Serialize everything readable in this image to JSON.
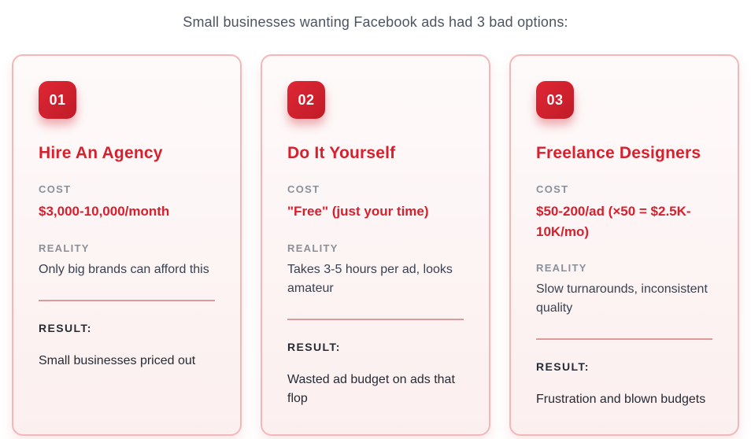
{
  "heading": "Small businesses wanting Facebook ads had 3 bad options:",
  "labels": {
    "cost": "COST",
    "reality": "REALITY",
    "result": "RESULT:"
  },
  "colors": {
    "accent_red": "#d7202e",
    "badge_red": "#c01b27",
    "card_background": "#fcefef",
    "card_border": "#f5b6b8",
    "divider_pink": "#de9a9a",
    "label_gray": "#8a909a",
    "body_text_dark": "#3a4150",
    "heading_gray": "#4d5462"
  },
  "cards": [
    {
      "number": "01",
      "title": "Hire An Agency",
      "cost": "$3,000-10,000/month",
      "reality": "Only big brands can afford this",
      "result": "Small businesses priced out"
    },
    {
      "number": "02",
      "title": "Do It Yourself",
      "cost": "\"Free\" (just your time)",
      "reality": "Takes 3-5 hours per ad, looks amateur",
      "result": "Wasted ad budget on ads that flop"
    },
    {
      "number": "03",
      "title": "Freelance Designers",
      "cost": "$50-200/ad (×50 = $2.5K-10K/mo)",
      "reality": "Slow turnarounds, inconsistent quality",
      "result": "Frustration and blown budgets"
    }
  ]
}
